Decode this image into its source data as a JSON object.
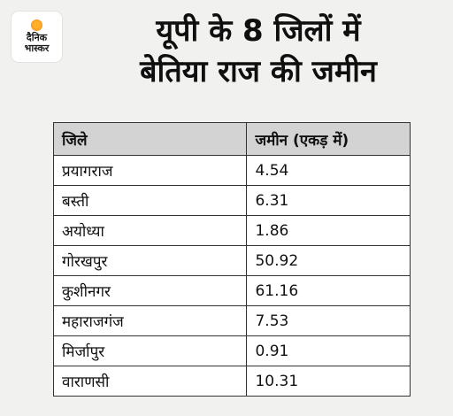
{
  "logo": {
    "line1": "दैनिक",
    "line2": "भास्कर"
  },
  "title": {
    "line1": "यूपी के 8 जिलों में",
    "line2": "बेतिया राज की जमीन"
  },
  "table": {
    "headers": [
      "जिले",
      "जमीन (एकड़ में)"
    ],
    "rows": [
      [
        "प्रयागराज",
        "4.54"
      ],
      [
        "बस्ती",
        "6.31"
      ],
      [
        "अयोध्या",
        "1.86"
      ],
      [
        "गोरखपुर",
        "50.92"
      ],
      [
        "कुशीनगर",
        "61.16"
      ],
      [
        "महाराजगंज",
        "7.53"
      ],
      [
        "मिर्जापुर",
        "0.91"
      ],
      [
        "वाराणसी",
        "10.31"
      ]
    ]
  }
}
